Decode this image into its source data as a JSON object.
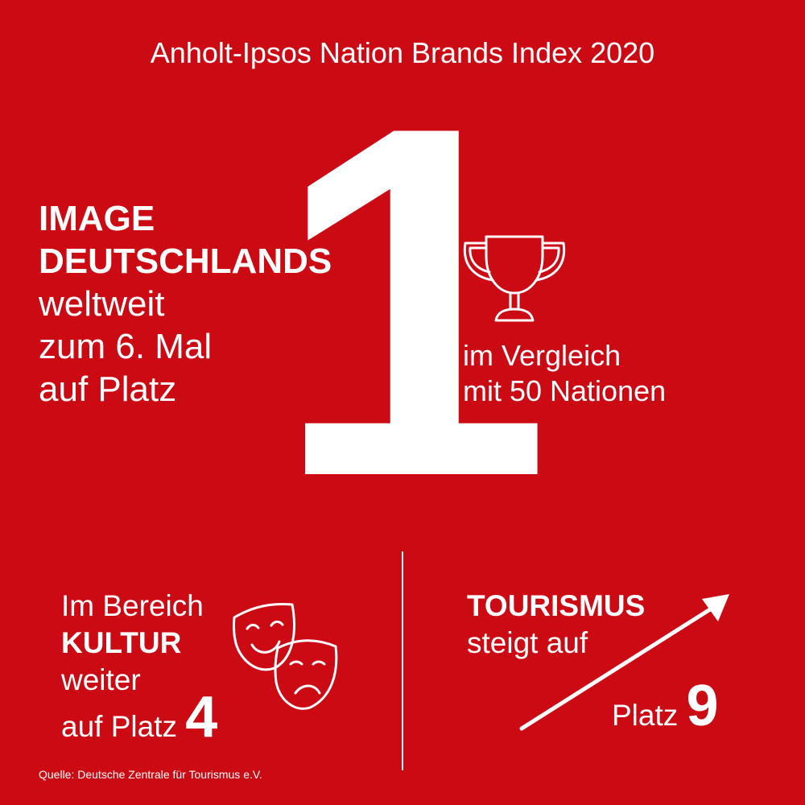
{
  "title": "Anholt-Ipsos Nation Brands Index 2020",
  "big_rank": "1",
  "headline": {
    "line1": "IMAGE",
    "line2": "DEUTSCHLANDS",
    "line3": "weltweit",
    "line4": "zum 6. Mal",
    "line5": "auf Platz"
  },
  "comparison": {
    "line1": "im Vergleich",
    "line2": "mit 50 Nationen"
  },
  "culture": {
    "line1": "Im Bereich",
    "line2": "KULTUR",
    "line3": "weiter",
    "line4": "auf Platz",
    "rank": "4"
  },
  "tourism": {
    "line1": "TOURISMUS",
    "line2": "steigt auf",
    "line3": "Platz",
    "rank": "9"
  },
  "source": "Quelle: Deutsche Zentrale für Tourismus e.V.",
  "icons": [
    "trophy-icon",
    "theater-masks-icon",
    "rising-arrow-icon"
  ],
  "colors": {
    "background": "#cc0a14",
    "foreground": "#ffffff"
  }
}
